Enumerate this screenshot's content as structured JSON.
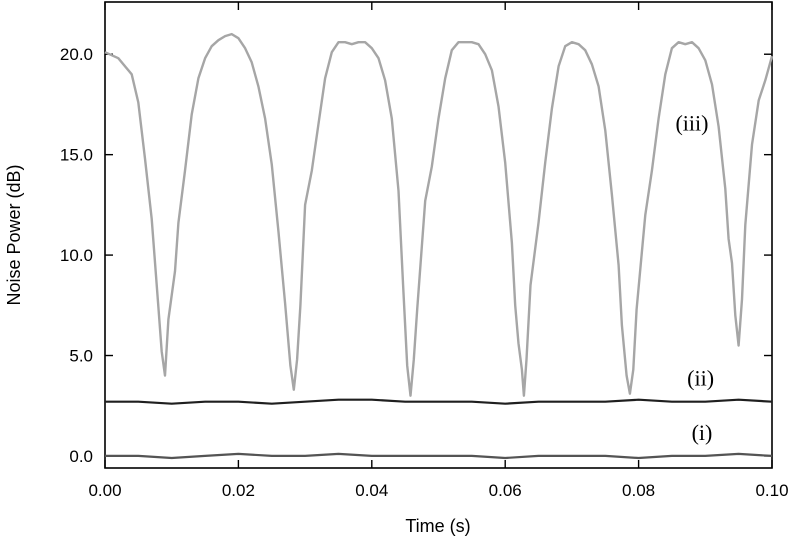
{
  "chart_data": {
    "type": "line",
    "title": "",
    "xlabel": "Time (s)",
    "ylabel": "Noise Power (dB)",
    "xlim": [
      0.0,
      0.1
    ],
    "ylim": [
      -0.6,
      22.6
    ],
    "x_ticks": [
      "0.00",
      "0.02",
      "0.04",
      "0.06",
      "0.08",
      "0.10"
    ],
    "x_tick_values": [
      0.0,
      0.02,
      0.04,
      0.06,
      0.08,
      0.1
    ],
    "y_ticks": [
      "0.0",
      "5.0",
      "10.0",
      "15.0",
      "20.0"
    ],
    "y_tick_values": [
      0.0,
      5.0,
      10.0,
      15.0,
      20.0
    ],
    "grid": false,
    "legend": "none",
    "annotations": [
      {
        "text": "(iii)",
        "x": 0.088,
        "y": 16.2
      },
      {
        "text": "(ii)",
        "x": 0.0893,
        "y": 3.5
      },
      {
        "text": "(i)",
        "x": 0.0895,
        "y": 0.8
      }
    ],
    "series": [
      {
        "label_text": "(iii)",
        "color": "#a6a6a6",
        "x": [
          0.0,
          0.002,
          0.004,
          0.005,
          0.006,
          0.007,
          0.008,
          0.0085,
          0.009,
          0.0095,
          0.0105,
          0.011,
          0.012,
          0.013,
          0.014,
          0.015,
          0.016,
          0.017,
          0.018,
          0.019,
          0.02,
          0.021,
          0.022,
          0.023,
          0.024,
          0.025,
          0.026,
          0.027,
          0.0278,
          0.0283,
          0.0288,
          0.0293,
          0.03,
          0.031,
          0.032,
          0.033,
          0.034,
          0.035,
          0.036,
          0.037,
          0.038,
          0.039,
          0.04,
          0.041,
          0.042,
          0.043,
          0.044,
          0.0447,
          0.0453,
          0.0458,
          0.0463,
          0.0468,
          0.048,
          0.049,
          0.05,
          0.051,
          0.052,
          0.053,
          0.054,
          0.055,
          0.056,
          0.057,
          0.058,
          0.059,
          0.06,
          0.061,
          0.0615,
          0.062,
          0.0625,
          0.0628,
          0.0632,
          0.0638,
          0.065,
          0.066,
          0.067,
          0.068,
          0.069,
          0.07,
          0.071,
          0.072,
          0.073,
          0.074,
          0.075,
          0.076,
          0.077,
          0.0775,
          0.0782,
          0.0787,
          0.0792,
          0.0797,
          0.081,
          0.082,
          0.083,
          0.084,
          0.085,
          0.086,
          0.087,
          0.088,
          0.089,
          0.09,
          0.091,
          0.092,
          0.093,
          0.0935,
          0.094,
          0.0945,
          0.095,
          0.0955,
          0.096,
          0.097,
          0.098,
          0.099,
          0.1
        ],
        "y": [
          20.1,
          19.8,
          19.0,
          17.6,
          14.8,
          11.8,
          7.4,
          5.2,
          4.0,
          6.8,
          9.2,
          11.6,
          14.2,
          17.0,
          18.8,
          19.8,
          20.4,
          20.7,
          20.9,
          21.0,
          20.8,
          20.3,
          19.6,
          18.4,
          16.8,
          14.5,
          11.2,
          7.6,
          4.5,
          3.3,
          4.8,
          7.5,
          12.5,
          14.2,
          16.5,
          18.8,
          20.1,
          20.6,
          20.6,
          20.5,
          20.6,
          20.6,
          20.3,
          19.8,
          18.7,
          16.8,
          13.2,
          8.5,
          4.5,
          3.0,
          4.8,
          7.3,
          12.7,
          14.4,
          16.8,
          18.8,
          20.2,
          20.6,
          20.6,
          20.6,
          20.5,
          20.0,
          19.2,
          17.4,
          14.6,
          10.6,
          7.5,
          5.6,
          4.3,
          3.0,
          4.8,
          8.5,
          11.6,
          14.6,
          17.3,
          19.4,
          20.4,
          20.6,
          20.5,
          20.2,
          19.5,
          18.4,
          16.2,
          13.0,
          9.5,
          6.5,
          4.0,
          3.1,
          4.3,
          7.3,
          12.0,
          14.2,
          16.8,
          19.0,
          20.3,
          20.6,
          20.5,
          20.6,
          20.3,
          19.7,
          18.5,
          16.4,
          13.3,
          10.8,
          9.6,
          7.0,
          5.5,
          7.8,
          11.5,
          15.5,
          17.7,
          18.7,
          19.9
        ]
      },
      {
        "label_text": "(ii)",
        "color": "#1f1f1f",
        "x": [
          0.0,
          0.005,
          0.01,
          0.015,
          0.02,
          0.025,
          0.03,
          0.035,
          0.04,
          0.045,
          0.05,
          0.055,
          0.06,
          0.065,
          0.07,
          0.075,
          0.08,
          0.085,
          0.09,
          0.095,
          0.1
        ],
        "y": [
          2.7,
          2.7,
          2.6,
          2.7,
          2.7,
          2.6,
          2.7,
          2.8,
          2.8,
          2.7,
          2.7,
          2.7,
          2.6,
          2.7,
          2.7,
          2.7,
          2.8,
          2.7,
          2.7,
          2.8,
          2.7
        ]
      },
      {
        "label_text": "(i)",
        "color": "#545454",
        "x": [
          0.0,
          0.005,
          0.01,
          0.015,
          0.02,
          0.025,
          0.03,
          0.035,
          0.04,
          0.045,
          0.05,
          0.055,
          0.06,
          0.065,
          0.07,
          0.075,
          0.08,
          0.085,
          0.09,
          0.095,
          0.1
        ],
        "y": [
          0.0,
          0.0,
          -0.1,
          0.0,
          0.1,
          0.0,
          0.0,
          0.1,
          0.0,
          0.0,
          0.0,
          0.0,
          -0.1,
          0.0,
          0.0,
          0.0,
          -0.1,
          0.0,
          0.0,
          0.1,
          0.0
        ]
      }
    ]
  }
}
